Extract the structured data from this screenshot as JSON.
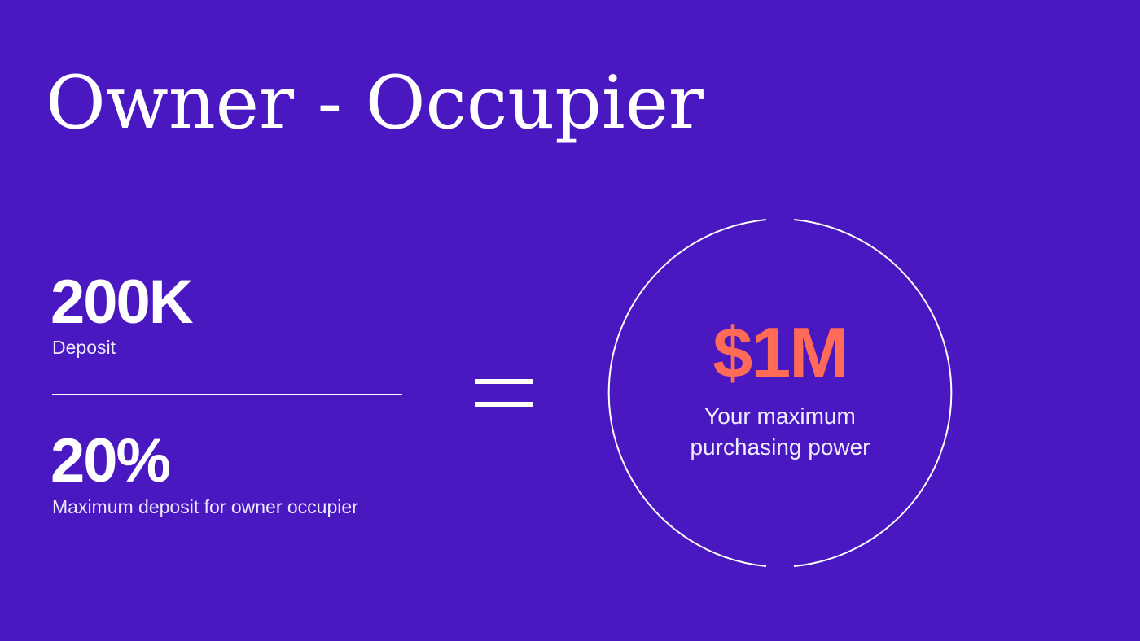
{
  "title": "Owner - Occupier",
  "left": {
    "deposit_value": "200K",
    "deposit_label": "Deposit",
    "percent_value": "20%",
    "percent_label": "Maximum deposit for owner occupier"
  },
  "operator_icon": "equals-icon",
  "result": {
    "amount": "$1M",
    "caption_line1": "Your maximum",
    "caption_line2": "purchasing power"
  },
  "colors": {
    "background": "#4a18c0",
    "accent": "#ff6b57",
    "text": "#ffffff"
  }
}
